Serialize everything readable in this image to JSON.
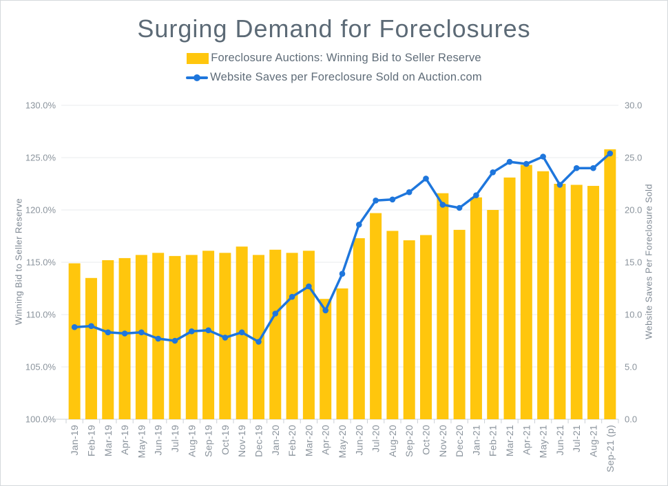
{
  "title": "Surging Demand for Foreclosures",
  "legend_items": [
    {
      "label": "Foreclosure Auctions: Winning Bid to Seller Reserve",
      "marker": "bar-swatch",
      "color": "#FFC60D"
    },
    {
      "label": "Website Saves per Foreclosure Sold on Auction.com",
      "marker": "line-swatch",
      "color": "#1E76DC"
    }
  ],
  "chart_data": {
    "type": "combo_bar_line",
    "grid": "horizontal",
    "legend_position": "top",
    "categories": [
      "Jan-19",
      "Feb-19",
      "Mar-19",
      "Apr-19",
      "May-19",
      "Jun-19",
      "Jul-19",
      "Aug-19",
      "Sep-19",
      "Oct-19",
      "Nov-19",
      "Dec-19",
      "Jan-20",
      "Feb-20",
      "Mar-20",
      "Apr-20",
      "May-20",
      "Jun-20",
      "Jul-20",
      "Aug-20",
      "Sep-20",
      "Oct-20",
      "Nov-20",
      "Dec-20",
      "Jan-21",
      "Feb-21",
      "Mar-21",
      "Apr-21",
      "May-21",
      "Jun-21",
      "Jul-21",
      "Aug-21",
      "Sep-21 (p)"
    ],
    "series": [
      {
        "name": "Foreclosure Auctions: Winning Bid to Seller Reserve",
        "type": "bar",
        "axis": "left",
        "color": "#FFC60D",
        "values": [
          114.9,
          113.5,
          115.2,
          115.4,
          115.7,
          115.9,
          115.6,
          115.7,
          116.1,
          115.9,
          116.5,
          115.7,
          116.2,
          115.9,
          116.1,
          111.5,
          112.5,
          117.3,
          119.7,
          118.0,
          117.1,
          117.6,
          121.6,
          118.1,
          121.2,
          120.0,
          123.1,
          124.3,
          123.7,
          122.5,
          122.4,
          122.3,
          125.8
        ]
      },
      {
        "name": "Website Saves per Foreclosure Sold on Auction.com",
        "type": "line",
        "axis": "right",
        "color": "#1E76DC",
        "values": [
          8.8,
          8.9,
          8.3,
          8.2,
          8.3,
          7.7,
          7.5,
          8.4,
          8.5,
          7.8,
          8.3,
          7.4,
          10.1,
          11.7,
          12.7,
          10.4,
          13.9,
          18.6,
          20.9,
          21.0,
          21.7,
          23.0,
          20.5,
          20.2,
          21.4,
          23.6,
          24.6,
          24.4,
          25.1,
          22.4,
          24.0,
          24.0,
          25.4
        ]
      }
    ],
    "left_axis": {
      "title": "Winning Bid to Seller Reserve",
      "min": 100,
      "max": 130,
      "tick_values": [
        100,
        105,
        110,
        115,
        120,
        125,
        130
      ],
      "tick_labels": [
        "100.0%",
        "105.0%",
        "110.0%",
        "115.0%",
        "120.0%",
        "125.0%",
        "130.0%"
      ]
    },
    "right_axis": {
      "title": "Website Saves Per Foreclosure Sold",
      "min": 0,
      "max": 30,
      "tick_values": [
        0,
        5,
        10,
        15,
        20,
        25,
        30
      ],
      "tick_labels": [
        "0.0",
        "5.0",
        "10.0",
        "15.0",
        "20.0",
        "25.0",
        "30.0"
      ]
    },
    "style": {
      "gridline_color": "#E9EBED",
      "axis_line_color": "#CBD0D5",
      "tick_text_color": "#8A939C",
      "bar_color": "#FFC60D",
      "line_color": "#1E76DC"
    }
  }
}
